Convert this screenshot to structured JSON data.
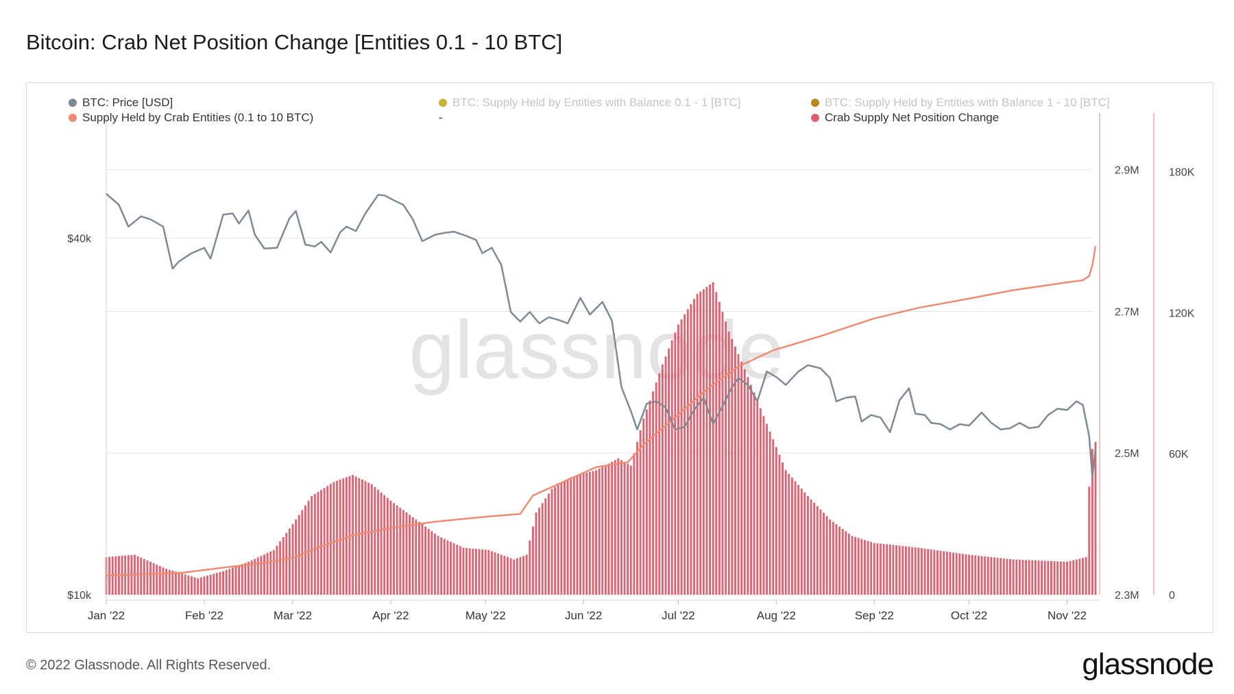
{
  "title": "Bitcoin: Crab Net Position Change [Entities 0.1 - 10 BTC]",
  "footer": {
    "copyright": "© 2022 Glassnode. All Rights Reserved.",
    "brand": "glassnode"
  },
  "watermark": "glassnode",
  "colors": {
    "price": "#7c8b91",
    "supply": "#f08a70",
    "bars": "#e0606f",
    "legend_yellow": "#c9b13a",
    "legend_gold": "#b7861d",
    "grid": "#e6e6e6"
  },
  "legend": [
    {
      "label": "BTC: Price [USD]",
      "color": "#7c8b91",
      "muted": false
    },
    {
      "label": "BTC: Supply Held by Entities with Balance 0.1 - 1 [BTC]",
      "color": "#c9b13a",
      "muted": true
    },
    {
      "label": "BTC: Supply Held by Entities with Balance 1 - 10 [BTC]",
      "color": "#b7861d",
      "muted": true
    },
    {
      "label": "Supply Held by Crab Entities (0.1 to 10 BTC)",
      "color": "#f08a70",
      "muted": false
    },
    {
      "label": "-",
      "color": "",
      "muted": false
    },
    {
      "label": "Crab Supply Net Position Change",
      "color": "#e0606f",
      "muted": false
    }
  ],
  "chart_data": {
    "type": "line+bar",
    "x_range": [
      "2022-01-01",
      "2022-11-10"
    ],
    "x_ticks": [
      "Jan '22",
      "Feb '22",
      "Mar '22",
      "Apr '22",
      "May '22",
      "Jun '22",
      "Jul '22",
      "Aug '22",
      "Sep '22",
      "Oct '22",
      "Nov '22"
    ],
    "axes": {
      "price": {
        "scale": "log",
        "range": [
          10000,
          65000
        ],
        "ticks": [
          "$10k",
          "$40k"
        ]
      },
      "supply": {
        "range": [
          2300000,
          2980000
        ],
        "ticks": [
          "2.3M",
          "2.5M",
          "2.7M",
          "2.9M"
        ]
      },
      "net_change": {
        "range": [
          0,
          205000
        ],
        "ticks": [
          "0",
          "60K",
          "120K",
          "180K"
        ]
      }
    },
    "series": [
      {
        "name": "BTC: Price [USD]",
        "type": "line",
        "axis": "price",
        "points": [
          [
            "2022-01-01",
            47500
          ],
          [
            "2022-01-05",
            45500
          ],
          [
            "2022-01-08",
            41800
          ],
          [
            "2022-01-12",
            43500
          ],
          [
            "2022-01-15",
            43000
          ],
          [
            "2022-01-19",
            41800
          ],
          [
            "2022-01-22",
            35500
          ],
          [
            "2022-01-24",
            36500
          ],
          [
            "2022-01-28",
            37700
          ],
          [
            "2022-02-01",
            38500
          ],
          [
            "2022-02-03",
            36900
          ],
          [
            "2022-02-07",
            43800
          ],
          [
            "2022-02-10",
            44000
          ],
          [
            "2022-02-12",
            42300
          ],
          [
            "2022-02-15",
            44500
          ],
          [
            "2022-02-17",
            40500
          ],
          [
            "2022-02-20",
            38400
          ],
          [
            "2022-02-24",
            38500
          ],
          [
            "2022-02-28",
            43200
          ],
          [
            "2022-03-02",
            44400
          ],
          [
            "2022-03-05",
            39000
          ],
          [
            "2022-03-08",
            38700
          ],
          [
            "2022-03-10",
            39400
          ],
          [
            "2022-03-13",
            37800
          ],
          [
            "2022-03-16",
            40900
          ],
          [
            "2022-03-18",
            41800
          ],
          [
            "2022-03-21",
            41100
          ],
          [
            "2022-03-24",
            44000
          ],
          [
            "2022-03-28",
            47300
          ],
          [
            "2022-03-30",
            47200
          ],
          [
            "2022-04-02",
            46300
          ],
          [
            "2022-04-05",
            45500
          ],
          [
            "2022-04-08",
            43000
          ],
          [
            "2022-04-11",
            39500
          ],
          [
            "2022-04-15",
            40500
          ],
          [
            "2022-04-18",
            40800
          ],
          [
            "2022-04-21",
            41000
          ],
          [
            "2022-04-25",
            40300
          ],
          [
            "2022-04-28",
            39700
          ],
          [
            "2022-04-30",
            37700
          ],
          [
            "2022-05-03",
            38500
          ],
          [
            "2022-05-06",
            36000
          ],
          [
            "2022-05-09",
            30000
          ],
          [
            "2022-05-12",
            28900
          ],
          [
            "2022-05-15",
            30000
          ],
          [
            "2022-05-18",
            28700
          ],
          [
            "2022-05-21",
            29400
          ],
          [
            "2022-05-24",
            29100
          ],
          [
            "2022-05-27",
            28700
          ],
          [
            "2022-05-31",
            31700
          ],
          [
            "2022-06-03",
            29700
          ],
          [
            "2022-06-07",
            31200
          ],
          [
            "2022-06-10",
            29000
          ],
          [
            "2022-06-13",
            22400
          ],
          [
            "2022-06-16",
            20400
          ],
          [
            "2022-06-18",
            19000
          ],
          [
            "2022-06-21",
            21000
          ],
          [
            "2022-06-24",
            21200
          ],
          [
            "2022-06-27",
            20700
          ],
          [
            "2022-06-30",
            19000
          ],
          [
            "2022-07-03",
            19200
          ],
          [
            "2022-07-06",
            20500
          ],
          [
            "2022-07-09",
            21500
          ],
          [
            "2022-07-12",
            19400
          ],
          [
            "2022-07-15",
            20800
          ],
          [
            "2022-07-18",
            22400
          ],
          [
            "2022-07-20",
            23200
          ],
          [
            "2022-07-23",
            22600
          ],
          [
            "2022-07-26",
            21200
          ],
          [
            "2022-07-29",
            23800
          ],
          [
            "2022-08-01",
            23300
          ],
          [
            "2022-08-04",
            22600
          ],
          [
            "2022-08-08",
            23800
          ],
          [
            "2022-08-11",
            24400
          ],
          [
            "2022-08-15",
            24100
          ],
          [
            "2022-08-18",
            23200
          ],
          [
            "2022-08-20",
            21200
          ],
          [
            "2022-08-23",
            21500
          ],
          [
            "2022-08-26",
            21600
          ],
          [
            "2022-08-28",
            19600
          ],
          [
            "2022-08-31",
            20100
          ],
          [
            "2022-09-03",
            19900
          ],
          [
            "2022-09-06",
            18800
          ],
          [
            "2022-09-09",
            21300
          ],
          [
            "2022-09-12",
            22300
          ],
          [
            "2022-09-14",
            20200
          ],
          [
            "2022-09-17",
            20100
          ],
          [
            "2022-09-19",
            19500
          ],
          [
            "2022-09-22",
            19400
          ],
          [
            "2022-09-25",
            19000
          ],
          [
            "2022-09-28",
            19400
          ],
          [
            "2022-10-01",
            19300
          ],
          [
            "2022-10-05",
            20300
          ],
          [
            "2022-10-08",
            19500
          ],
          [
            "2022-10-11",
            19000
          ],
          [
            "2022-10-14",
            19100
          ],
          [
            "2022-10-17",
            19500
          ],
          [
            "2022-10-20",
            19100
          ],
          [
            "2022-10-23",
            19200
          ],
          [
            "2022-10-26",
            20100
          ],
          [
            "2022-10-29",
            20600
          ],
          [
            "2022-11-01",
            20500
          ],
          [
            "2022-11-04",
            21200
          ],
          [
            "2022-11-06",
            20900
          ],
          [
            "2022-11-08",
            18500
          ],
          [
            "2022-11-09",
            15800
          ],
          [
            "2022-11-10",
            17600
          ]
        ]
      },
      {
        "name": "Supply Held by Crab Entities (0.1 to 10 BTC)",
        "type": "line",
        "axis": "supply",
        "points": [
          [
            "2022-01-01",
            2327000
          ],
          [
            "2022-01-15",
            2329000
          ],
          [
            "2022-01-25",
            2331000
          ],
          [
            "2022-02-05",
            2337000
          ],
          [
            "2022-02-20",
            2345000
          ],
          [
            "2022-03-01",
            2352000
          ],
          [
            "2022-03-10",
            2368000
          ],
          [
            "2022-03-20",
            2384000
          ],
          [
            "2022-04-01",
            2394000
          ],
          [
            "2022-04-15",
            2403000
          ],
          [
            "2022-05-01",
            2410000
          ],
          [
            "2022-05-12",
            2414000
          ],
          [
            "2022-05-16",
            2440000
          ],
          [
            "2022-05-25",
            2458000
          ],
          [
            "2022-06-05",
            2480000
          ],
          [
            "2022-06-15",
            2487000
          ],
          [
            "2022-06-20",
            2512000
          ],
          [
            "2022-06-30",
            2550000
          ],
          [
            "2022-07-10",
            2590000
          ],
          [
            "2022-07-20",
            2622000
          ],
          [
            "2022-07-31",
            2645000
          ],
          [
            "2022-08-15",
            2665000
          ],
          [
            "2022-09-01",
            2690000
          ],
          [
            "2022-09-15",
            2705000
          ],
          [
            "2022-10-01",
            2718000
          ],
          [
            "2022-10-15",
            2730000
          ],
          [
            "2022-11-01",
            2741000
          ],
          [
            "2022-11-06",
            2744000
          ],
          [
            "2022-11-08",
            2750000
          ],
          [
            "2022-11-09",
            2765000
          ],
          [
            "2022-11-10",
            2792000
          ]
        ]
      },
      {
        "name": "Crab Supply Net Position Change",
        "type": "bar",
        "axis": "net_change",
        "points": [
          [
            "2022-01-01",
            16000
          ],
          [
            "2022-01-10",
            17000
          ],
          [
            "2022-01-20",
            11000
          ],
          [
            "2022-01-30",
            7000
          ],
          [
            "2022-02-07",
            10000
          ],
          [
            "2022-02-15",
            14000
          ],
          [
            "2022-02-23",
            19000
          ],
          [
            "2022-03-01",
            30000
          ],
          [
            "2022-03-07",
            42000
          ],
          [
            "2022-03-14",
            48000
          ],
          [
            "2022-03-20",
            51000
          ],
          [
            "2022-03-26",
            47000
          ],
          [
            "2022-04-01",
            40000
          ],
          [
            "2022-04-08",
            33000
          ],
          [
            "2022-04-16",
            25000
          ],
          [
            "2022-04-24",
            20000
          ],
          [
            "2022-05-02",
            19000
          ],
          [
            "2022-05-10",
            15000
          ],
          [
            "2022-05-14",
            17000
          ],
          [
            "2022-05-17",
            35000
          ],
          [
            "2022-05-22",
            45000
          ],
          [
            "2022-05-28",
            50000
          ],
          [
            "2022-06-05",
            53000
          ],
          [
            "2022-06-12",
            58000
          ],
          [
            "2022-06-16",
            55000
          ],
          [
            "2022-06-20",
            75000
          ],
          [
            "2022-06-26",
            98000
          ],
          [
            "2022-07-01",
            115000
          ],
          [
            "2022-07-07",
            128000
          ],
          [
            "2022-07-12",
            133000
          ],
          [
            "2022-07-17",
            112000
          ],
          [
            "2022-07-22",
            96000
          ],
          [
            "2022-07-28",
            76000
          ],
          [
            "2022-08-04",
            53000
          ],
          [
            "2022-08-11",
            42000
          ],
          [
            "2022-08-18",
            32000
          ],
          [
            "2022-08-25",
            25000
          ],
          [
            "2022-09-01",
            22000
          ],
          [
            "2022-09-15",
            20000
          ],
          [
            "2022-10-01",
            17000
          ],
          [
            "2022-10-15",
            15000
          ],
          [
            "2022-11-01",
            14000
          ],
          [
            "2022-11-07",
            16000
          ],
          [
            "2022-11-08",
            46000
          ],
          [
            "2022-11-09",
            62000
          ],
          [
            "2022-11-10",
            65000
          ]
        ]
      }
    ]
  }
}
